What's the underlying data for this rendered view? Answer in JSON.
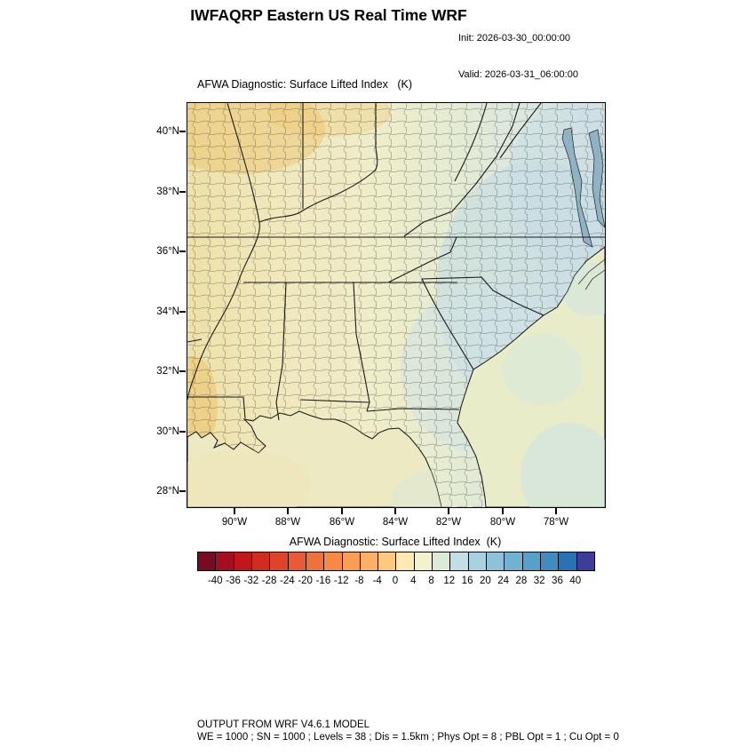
{
  "header": {
    "title": "IWFAQRP Eastern US Real Time WRF",
    "init": "Init: 2026-03-30_00:00:00",
    "valid": "Valid: 2026-03-31_06:00:00"
  },
  "plot": {
    "title": "AFWA Diagnostic: Surface Lifted Index   (K)",
    "y_ticks": [
      "40°N",
      "38°N",
      "36°N",
      "34°N",
      "32°N",
      "30°N",
      "28°N"
    ],
    "x_ticks": [
      "90°W",
      "88°W",
      "86°W",
      "84°W",
      "82°W",
      "80°W",
      "78°W"
    ]
  },
  "colorbar": {
    "label": "AFWA Diagnostic: Surface Lifted Index  (K)",
    "min": -40,
    "max": 40,
    "interval": 4,
    "ticks": [
      "-40",
      "-36",
      "-32",
      "-28",
      "-24",
      "-20",
      "-16",
      "-12",
      "-8",
      "-4",
      "0",
      "4",
      "8",
      "12",
      "16",
      "20",
      "24",
      "28",
      "32",
      "36",
      "40"
    ],
    "colors": [
      "#780a23",
      "#a30e20",
      "#c2161b",
      "#d22b20",
      "#e0432a",
      "#ea5a34",
      "#f1713c",
      "#f78846",
      "#fa9d55",
      "#fcb168",
      "#fdc97e",
      "#feeab0",
      "#f4f1cd",
      "#dcead6",
      "#c3dfe6",
      "#a9d2e1",
      "#8dc2db",
      "#72b1d3",
      "#57a0ca",
      "#3f8dbf",
      "#2a73b3",
      "#3e3d9a"
    ]
  },
  "map_colors": {
    "land_west": "#f0e4b0",
    "land_mid": "#f0edca",
    "land_east": "#d6e3e7",
    "warm_patch": "#eec268",
    "cool_patch": "#c2dbe4",
    "water": "#8fb3c2",
    "gulf": "#ede9c2",
    "atlantic": "#e9ecc8"
  },
  "footer": {
    "line1": "OUTPUT FROM WRF V4.6.1 MODEL",
    "line2": "WE = 1000 ; SN = 1000 ; Levels = 38 ; Dis = 1.5km ; Phys Opt = 8 ; PBL Opt = 1 ; Cu Opt = 0"
  }
}
